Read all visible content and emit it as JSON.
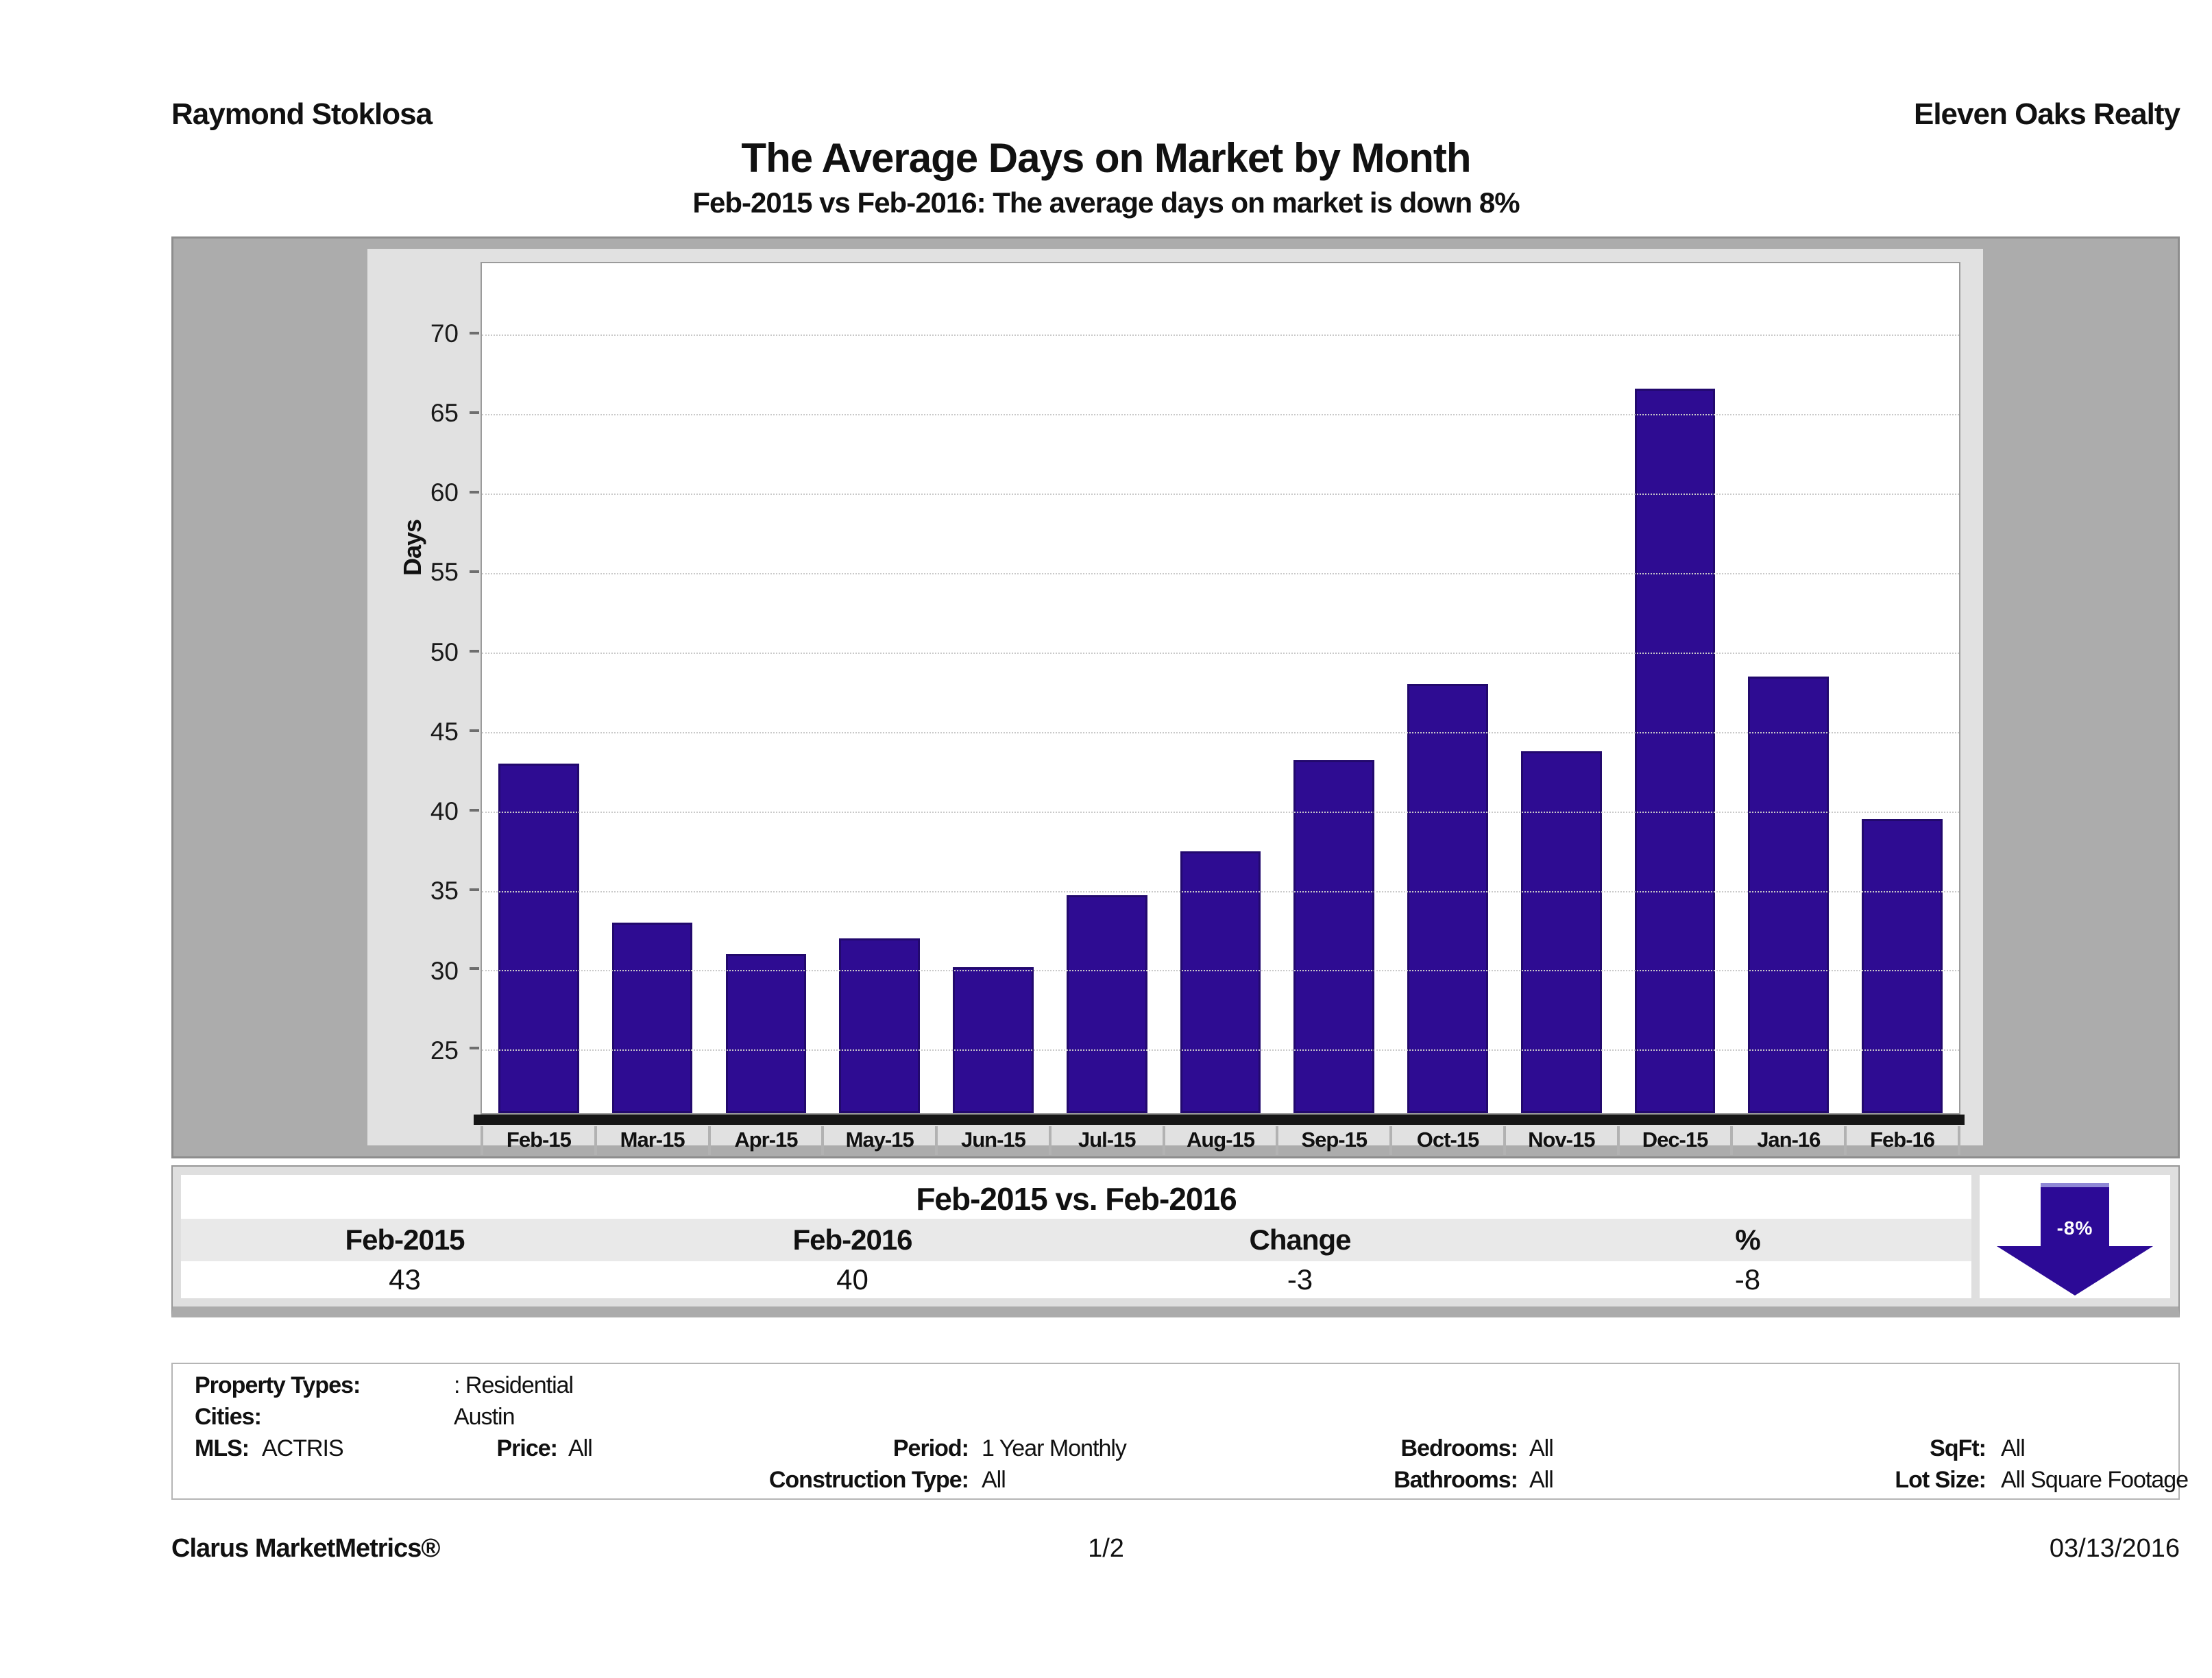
{
  "header": {
    "agent": "Raymond Stoklosa",
    "company": "Eleven Oaks Realty",
    "title": "The Average Days on Market by Month",
    "subtitle": "Feb-2015 vs Feb-2016: The average days on market is down 8%"
  },
  "chart_data": {
    "type": "bar",
    "categories": [
      "Feb-15",
      "Mar-15",
      "Apr-15",
      "May-15",
      "Jun-15",
      "Jul-15",
      "Aug-15",
      "Sep-15",
      "Oct-15",
      "Nov-15",
      "Dec-15",
      "Jan-16",
      "Feb-16"
    ],
    "values": [
      43,
      33,
      31,
      32,
      30.2,
      34.7,
      37.5,
      43.2,
      48,
      43.8,
      66.6,
      48.5,
      39.5
    ],
    "title": "",
    "xlabel": "",
    "ylabel": "Days",
    "ylim": [
      21,
      74.5
    ],
    "yticks": [
      25,
      30,
      35,
      40,
      45,
      50,
      55,
      60,
      65,
      70
    ],
    "grid": true,
    "legend": "none",
    "bar_color": "#2e0c92"
  },
  "comparison": {
    "title": "Feb-2015 vs. Feb-2016",
    "columns": [
      "Feb-2015",
      "Feb-2016",
      "Change",
      "%"
    ],
    "values": [
      "43",
      "40",
      "-3",
      "-8"
    ],
    "arrow_label": "-8%",
    "arrow_color": "#2c0a96",
    "arrow_direction": "down"
  },
  "filters": {
    "property_types_label": "Property Types:",
    "property_types_value": ": Residential",
    "cities_label": "Cities:",
    "cities_value": "Austin",
    "mls_label": "MLS:",
    "mls_value": "ACTRIS",
    "price_label": "Price:",
    "price_value": "All",
    "period_label": "Period:",
    "period_value": "1 Year Monthly",
    "bedrooms_label": "Bedrooms:",
    "bedrooms_value": "All",
    "sqft_label": "SqFt:",
    "sqft_value": "All",
    "construction_label": "Construction Type:",
    "construction_value": "All",
    "bathrooms_label": "Bathrooms:",
    "bathrooms_value": "All",
    "lot_size_label": "Lot Size:",
    "lot_size_value": "All Square Footage"
  },
  "footer": {
    "brand": "Clarus MarketMetrics®",
    "page": "1/2",
    "date": "03/13/2016"
  }
}
